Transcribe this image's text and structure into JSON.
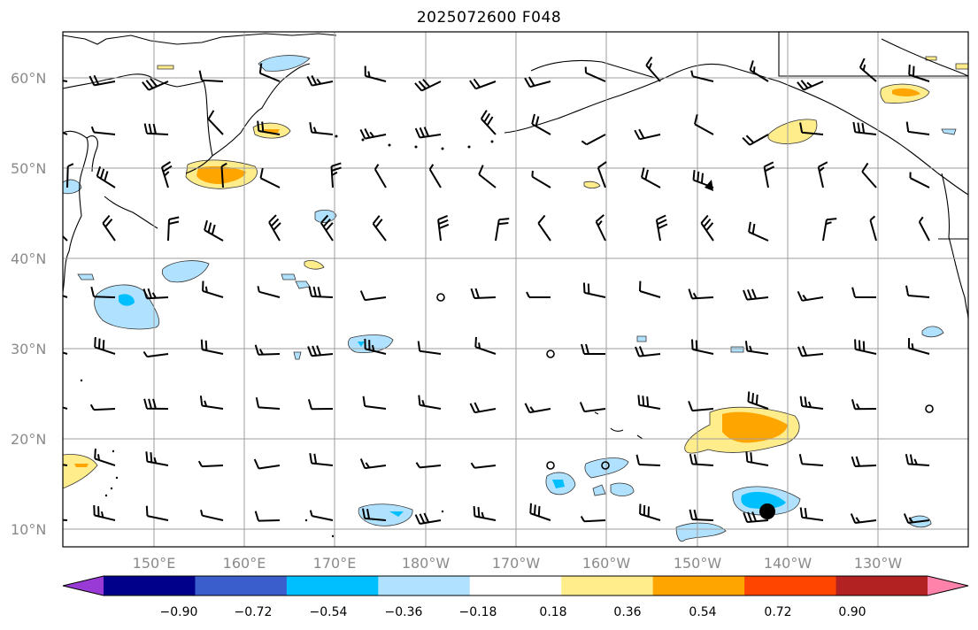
{
  "title": "2025072600 F048",
  "lat_labels": [
    "60°N",
    "50°N",
    "40°N",
    "30°N",
    "20°N",
    "10°N"
  ],
  "lon_labels": [
    "150°E",
    "160°E",
    "170°E",
    "180°W",
    "170°W",
    "160°W",
    "150°W",
    "140°W",
    "130°W"
  ],
  "colorbar": {
    "colors": [
      "#9a3ad6",
      "#00008b",
      "#3a5fcd",
      "#00bfff",
      "#b0e2ff",
      "#ffffff",
      "#ffec8b",
      "#ffa500",
      "#ff4500",
      "#b22222",
      "#ff82ab"
    ],
    "tick_labels": [
      "−0.90",
      "−0.72",
      "−0.54",
      "−0.36",
      "−0.18",
      "0.18",
      "0.36",
      "0.54",
      "0.72",
      "0.90"
    ]
  }
}
